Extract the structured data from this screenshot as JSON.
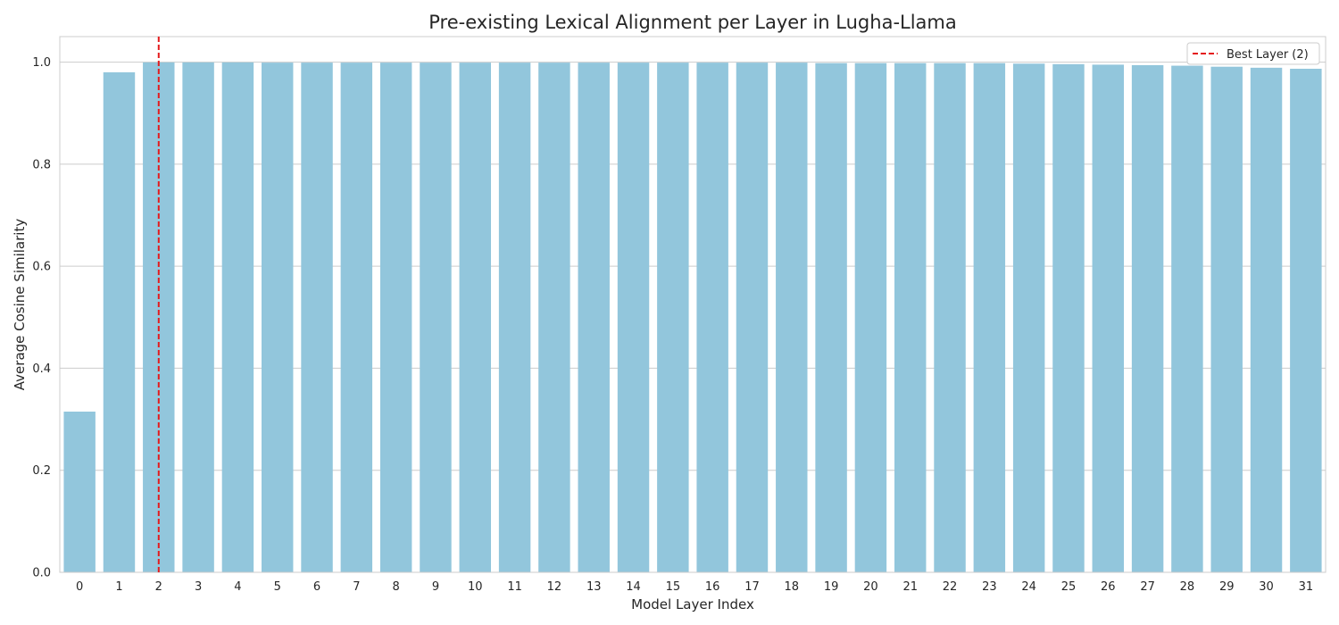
{
  "chart_data": {
    "type": "bar",
    "title": "Pre-existing Lexical Alignment per Layer in Lugha-Llama",
    "xlabel": "Model Layer Index",
    "ylabel": "Average Cosine Similarity",
    "categories": [
      "0",
      "1",
      "2",
      "3",
      "4",
      "5",
      "6",
      "7",
      "8",
      "9",
      "10",
      "11",
      "12",
      "13",
      "14",
      "15",
      "16",
      "17",
      "18",
      "19",
      "20",
      "21",
      "22",
      "23",
      "24",
      "25",
      "26",
      "27",
      "28",
      "29",
      "30",
      "31"
    ],
    "values": [
      0.315,
      0.98,
      0.9995,
      0.9995,
      0.9995,
      0.999,
      0.999,
      0.999,
      0.999,
      0.999,
      0.999,
      0.999,
      0.999,
      0.999,
      0.999,
      0.999,
      0.999,
      0.999,
      0.999,
      0.998,
      0.998,
      0.998,
      0.998,
      0.998,
      0.997,
      0.996,
      0.995,
      0.994,
      0.993,
      0.991,
      0.989,
      0.987
    ],
    "ylim": [
      0,
      1.05
    ],
    "yticks": [
      "0.0",
      "0.2",
      "0.4",
      "0.6",
      "0.8",
      "1.0"
    ],
    "grid": "y",
    "bar_color": "#92c6dc",
    "reference_line": {
      "x": 2,
      "label": "Best Layer (2)",
      "color": "#e41a1c",
      "style": "dashed"
    },
    "legend_position": "top-right"
  }
}
